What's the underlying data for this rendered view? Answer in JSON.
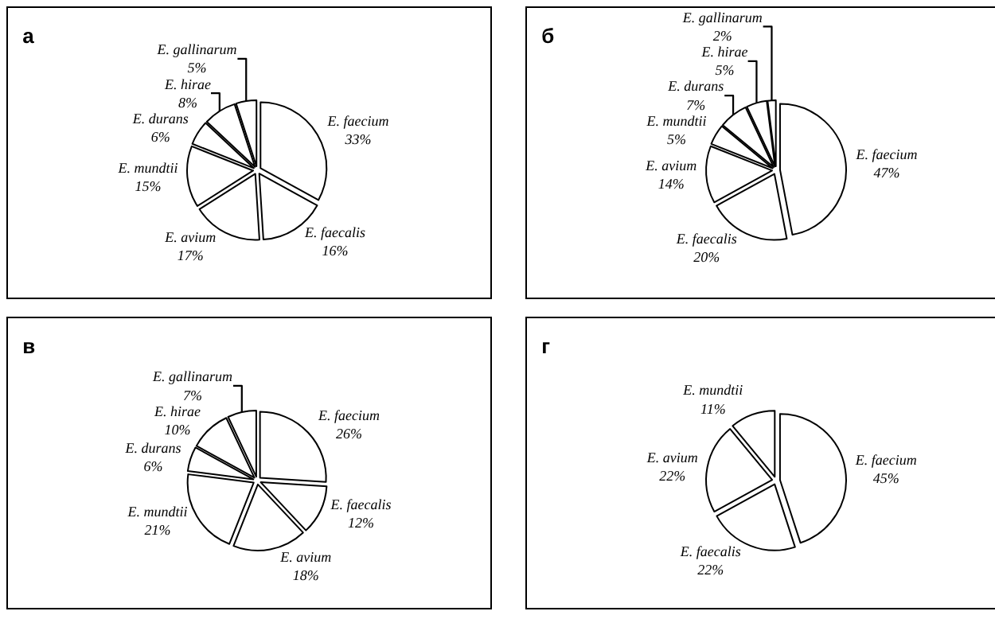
{
  "chart_data": [
    {
      "type": "pie",
      "title": "а",
      "categories": [
        "E. faecium",
        "E. faecalis",
        "E. avium",
        "E. mundtii",
        "E. durans",
        "E. hirae",
        "E. gallinarum"
      ],
      "values": [
        33,
        16,
        17,
        15,
        6,
        8,
        5
      ],
      "value_labels": [
        "33%",
        "16%",
        "17%",
        "15%",
        "6%",
        "8%",
        "5%"
      ],
      "colors": [
        "#ffffff",
        "#ffffff",
        "#ffffff",
        "#ffffff",
        "#ffffff",
        "#ffffff",
        "#ffffff"
      ],
      "legend": false
    },
    {
      "type": "pie",
      "title": "б",
      "categories": [
        "E. faecium",
        "E. faecalis",
        "E. avium",
        "E. mundtii",
        "E. durans",
        "E. hirae",
        "E. gallinarum"
      ],
      "values": [
        47,
        20,
        14,
        5,
        7,
        5,
        2
      ],
      "value_labels": [
        "47%",
        "20%",
        "14%",
        "5%",
        "7%",
        "5%",
        "2%"
      ],
      "colors": [
        "#ffffff",
        "#ffffff",
        "#ffffff",
        "#ffffff",
        "#ffffff",
        "#ffffff",
        "#ffffff"
      ],
      "legend": false
    },
    {
      "type": "pie",
      "title": "в",
      "categories": [
        "E. faecium",
        "E. faecalis",
        "E. avium",
        "E. mundtii",
        "E. durans",
        "E. hirae",
        "E. gallinarum"
      ],
      "values": [
        26,
        12,
        18,
        21,
        6,
        10,
        7
      ],
      "value_labels": [
        "26%",
        "12%",
        "18%",
        "21%",
        "6%",
        "10%",
        "7%"
      ],
      "colors": [
        "#ffffff",
        "#ffffff",
        "#ffffff",
        "#ffffff",
        "#ffffff",
        "#ffffff",
        "#ffffff"
      ],
      "legend": false
    },
    {
      "type": "pie",
      "title": "г",
      "categories": [
        "E. faecium",
        "E. faecalis",
        "E. avium",
        "E. mundtii"
      ],
      "values": [
        45,
        22,
        22,
        11
      ],
      "value_labels": [
        "45%",
        "22%",
        "22%",
        "11%"
      ],
      "colors": [
        "#ffffff",
        "#ffffff",
        "#ffffff",
        "#ffffff"
      ],
      "legend": false
    }
  ]
}
